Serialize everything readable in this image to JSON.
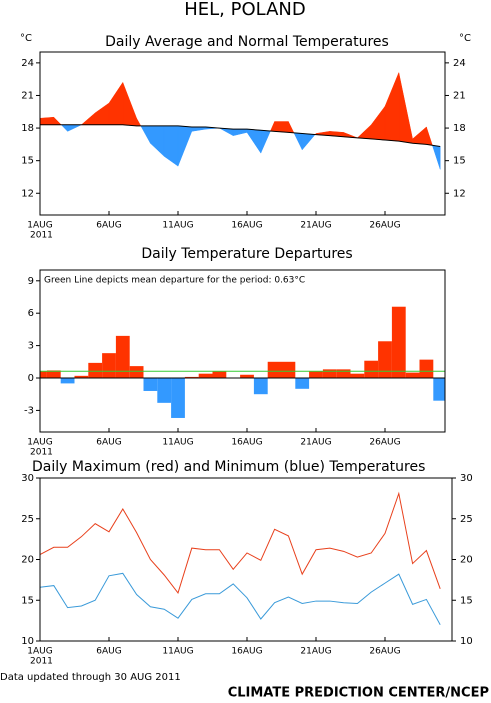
{
  "header": {
    "title": "HEL, POLAND"
  },
  "footer": {
    "note": "Data updated through 30 AUG 2011",
    "credit": "CLIMATE PREDICTION CENTER/NCEP"
  },
  "chart_data": [
    {
      "type": "area",
      "title": "Daily Average and Normal Temperatures",
      "ylabel": "°C",
      "y2label": "°C",
      "categories": [
        "1AUG",
        null,
        null,
        null,
        null,
        "6AUG",
        null,
        null,
        null,
        null,
        "11AUG",
        null,
        null,
        null,
        null,
        "16AUG",
        null,
        null,
        null,
        null,
        "21AUG",
        null,
        null,
        null,
        null,
        "26AUG",
        null,
        null,
        null,
        null
      ],
      "x_year_label": "2011",
      "series": [
        {
          "color": "#000000",
          "values": [
            18.9,
            19.0,
            17.7,
            18.3,
            19.4,
            20.3,
            22.2,
            18.9,
            16.6,
            15.4,
            14.5,
            17.7,
            17.9,
            18.0,
            17.3,
            17.6,
            15.7,
            18.6,
            18.6,
            16.0,
            17.5,
            17.7,
            17.6,
            17.1,
            18.3,
            20.0,
            23.1,
            17.0,
            18.1,
            14.2
          ]
        },
        {
          "color": "#000000",
          "values": [
            18.3,
            18.3,
            18.3,
            18.3,
            18.3,
            18.3,
            18.3,
            18.2,
            18.2,
            18.2,
            18.2,
            18.1,
            18.1,
            18.0,
            17.9,
            17.9,
            17.8,
            17.7,
            17.6,
            17.5,
            17.4,
            17.3,
            17.2,
            17.1,
            17.0,
            16.9,
            16.8,
            16.6,
            16.5,
            16.3
          ]
        }
      ],
      "above_color": "#ff3300",
      "below_color": "#3399ff",
      "ylim": [
        10,
        25
      ],
      "yticks": [
        12,
        15,
        18,
        21,
        24
      ],
      "y2lim": [
        10,
        25
      ],
      "y2ticks": [
        12,
        15,
        18,
        21,
        24
      ]
    },
    {
      "type": "bar",
      "title": "Daily Temperature Departures",
      "annotation": "Green Line depicts mean departure for the period: 0.63°C",
      "mean_departure": 0.63,
      "mean_color": "#33cc33",
      "categories": [
        "1AUG",
        null,
        null,
        null,
        null,
        "6AUG",
        null,
        null,
        null,
        null,
        "11AUG",
        null,
        null,
        null,
        null,
        "16AUG",
        null,
        null,
        null,
        null,
        "21AUG",
        null,
        null,
        null,
        null,
        "26AUG",
        null,
        null,
        null,
        null
      ],
      "x_year_label": "2011",
      "values": [
        0.6,
        0.7,
        -0.5,
        0.2,
        1.4,
        2.3,
        3.9,
        1.1,
        -1.2,
        -2.3,
        -3.7,
        0.1,
        0.4,
        0.6,
        0,
        0.3,
        -1.5,
        1.5,
        1.5,
        -1.0,
        0.6,
        0.8,
        0.8,
        0.4,
        1.6,
        3.4,
        6.6,
        0.5,
        1.7,
        -2.1
      ],
      "positive_color": "#ff3300",
      "negative_color": "#3399ff",
      "ylim": [
        -5,
        10
      ],
      "yticks": [
        -3,
        0,
        3,
        6,
        9
      ]
    },
    {
      "type": "line",
      "title": "Daily Maximum (red) and Minimum (blue) Temperatures",
      "categories": [
        "1AUG",
        null,
        null,
        null,
        null,
        "6AUG",
        null,
        null,
        null,
        null,
        "11AUG",
        null,
        null,
        null,
        null,
        "16AUG",
        null,
        null,
        null,
        null,
        "21AUG",
        null,
        null,
        null,
        null,
        "26AUG",
        null,
        null,
        null,
        null
      ],
      "x_year_label": "2011",
      "series": [
        {
          "color": "#e8401c",
          "values": [
            20.6,
            21.5,
            21.5,
            22.8,
            24.4,
            23.4,
            26.2,
            23.3,
            20.0,
            18.1,
            15.9,
            21.4,
            21.2,
            21.2,
            18.8,
            20.8,
            19.9,
            23.7,
            22.9,
            18.2,
            21.2,
            21.4,
            21.0,
            20.3,
            20.8,
            23.2,
            28.1,
            19.5,
            21.1,
            16.4
          ]
        },
        {
          "color": "#3a9ad9",
          "values": [
            16.6,
            16.8,
            14.1,
            14.3,
            15.0,
            18.0,
            18.3,
            15.7,
            14.2,
            13.9,
            12.8,
            15.1,
            15.8,
            15.8,
            17.0,
            15.3,
            12.7,
            14.7,
            15.4,
            14.6,
            14.9,
            14.9,
            14.7,
            14.6,
            16.0,
            17.1,
            18.2,
            14.5,
            15.1,
            12.0
          ]
        }
      ],
      "ylim": [
        10,
        30
      ],
      "yticks": [
        10,
        15,
        20,
        25,
        30
      ],
      "y2lim": [
        10,
        30
      ],
      "y2ticks": [
        10,
        15,
        20,
        25,
        30
      ]
    }
  ]
}
